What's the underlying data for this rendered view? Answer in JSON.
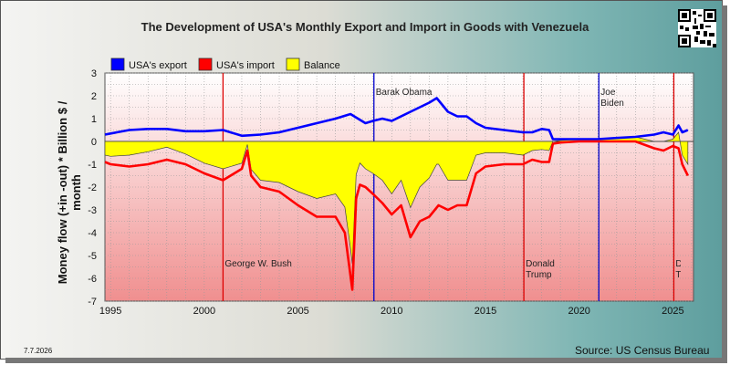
{
  "chart_data": {
    "type": "line",
    "title": "The Development of USA's Monthly Export and Import in Goods with Venezuela",
    "ylabel": "Money flow (+in -out) * Billion $ / month",
    "xlabel": "",
    "ylim": [
      -7,
      3
    ],
    "xlim": [
      1994.7,
      2026.1
    ],
    "x_ticks": [
      "1995",
      "2000",
      "2005",
      "2010",
      "2015",
      "2020",
      "2025"
    ],
    "y_ticks": [
      "3",
      "2",
      "1",
      "0",
      "-1",
      "-2",
      "-3",
      "-4",
      "-5",
      "-6",
      "-7"
    ],
    "grid": true,
    "legend_position": "top-left",
    "colors": {
      "export": "#0000ff",
      "import": "#ff0000",
      "balance": "#ffff00",
      "plot_bg_top": "#ffffff",
      "plot_bg_bottom": "#f08f8f",
      "presidency_line_red": "#dd0000",
      "presidency_line_blue": "#0000cc"
    },
    "series": [
      {
        "name": "USA's export",
        "key": "export",
        "x": [
          1994.7,
          1995,
          1996,
          1997,
          1998,
          1999,
          2000,
          2001,
          2002,
          2003,
          2004,
          2005,
          2006,
          2007,
          2007.8,
          2008.2,
          2008.6,
          2009,
          2009.5,
          2010,
          2011,
          2011.5,
          2012,
          2012.4,
          2013,
          2013.5,
          2014,
          2014.5,
          2015,
          2016,
          2017,
          2017.5,
          2018,
          2018.4,
          2018.6,
          2019,
          2020,
          2021,
          2022,
          2023,
          2024,
          2024.5,
          2025,
          2025.3,
          2025.5,
          2025.8
        ],
        "y": [
          0.3,
          0.35,
          0.5,
          0.55,
          0.55,
          0.45,
          0.45,
          0.5,
          0.25,
          0.3,
          0.4,
          0.6,
          0.8,
          1.0,
          1.2,
          1.0,
          0.8,
          0.9,
          1.0,
          0.9,
          1.3,
          1.5,
          1.7,
          1.9,
          1.3,
          1.1,
          1.1,
          0.8,
          0.6,
          0.5,
          0.4,
          0.4,
          0.55,
          0.5,
          0.1,
          0.1,
          0.1,
          0.1,
          0.15,
          0.2,
          0.3,
          0.4,
          0.3,
          0.7,
          0.4,
          0.5
        ]
      },
      {
        "name": "USA's import",
        "key": "import",
        "x": [
          1994.7,
          1995,
          1996,
          1997,
          1998,
          1999,
          2000,
          2001,
          2002,
          2002.3,
          2002.5,
          2003,
          2004,
          2005,
          2006,
          2007,
          2007.5,
          2007.9,
          2008.1,
          2008.3,
          2008.6,
          2009,
          2009.5,
          2010,
          2010.5,
          2011,
          2011.5,
          2012,
          2012.5,
          2013,
          2013.5,
          2014,
          2014.5,
          2015,
          2016,
          2017,
          2017.5,
          2018,
          2018.4,
          2018.6,
          2019,
          2020,
          2021,
          2022,
          2023,
          2024,
          2024.5,
          2025,
          2025.3,
          2025.5,
          2025.8
        ],
        "y": [
          -0.9,
          -1.0,
          -1.1,
          -1.0,
          -0.8,
          -1.0,
          -1.4,
          -1.7,
          -1.2,
          -0.4,
          -1.5,
          -2.0,
          -2.2,
          -2.8,
          -3.3,
          -3.3,
          -4.0,
          -6.5,
          -2.5,
          -1.9,
          -2.0,
          -2.3,
          -2.7,
          -3.2,
          -2.8,
          -4.2,
          -3.5,
          -3.3,
          -2.8,
          -3.0,
          -2.8,
          -2.8,
          -1.4,
          -1.1,
          -1.0,
          -1.0,
          -0.8,
          -0.9,
          -0.9,
          -0.1,
          -0.05,
          0.0,
          0.0,
          0.0,
          0.0,
          -0.3,
          -0.4,
          -0.2,
          -0.3,
          -1.0,
          -1.5
        ]
      }
    ],
    "balance_label": "Balance",
    "annotations": [
      {
        "text": "George W. Bush",
        "x": 2001.0,
        "line": "red"
      },
      {
        "text": "Barak Obama",
        "x": 2009.05,
        "line": "blue"
      },
      {
        "text": "Donald Trump",
        "x": 2017.05,
        "line": "red"
      },
      {
        "text": "Joe Biden",
        "x": 2021.05,
        "line": "blue"
      },
      {
        "text": "Donald Trump",
        "x": 2025.05,
        "line": "red"
      }
    ]
  },
  "footer": {
    "date": "7.7.2026",
    "source": "Source: US Census Bureau"
  }
}
